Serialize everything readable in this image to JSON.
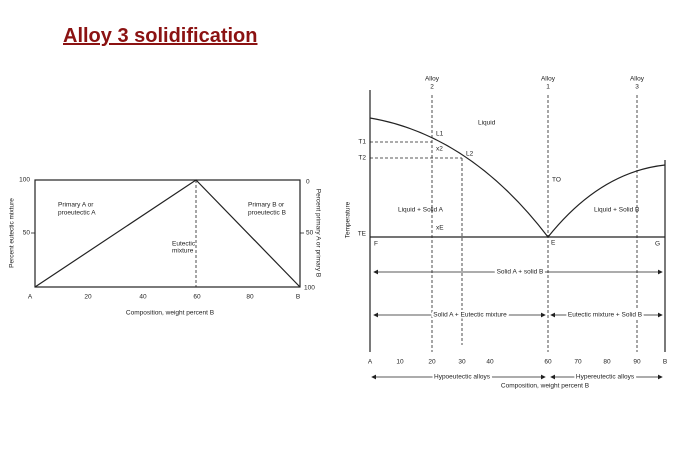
{
  "title": "Alloy 3 solidification",
  "left_diagram": {
    "y_label_left": "Percent eutectic mixture",
    "y_label_right": "Percent primary A or primary B",
    "y_ticks_left": [
      "100",
      "50"
    ],
    "y_ticks_right": [
      "0",
      "50",
      "100"
    ],
    "x_ticks": [
      "A",
      "20",
      "40",
      "60",
      "80",
      "B"
    ],
    "x_label": "Composition, weight percent B",
    "primary_a": [
      "Primary A or",
      "proeutectic A"
    ],
    "primary_b": [
      "Primary B or",
      "proeutectic B"
    ],
    "eutectic": [
      "Eutectic",
      "mixture"
    ]
  },
  "right_diagram": {
    "alloys": [
      [
        "Alloy",
        "2"
      ],
      [
        "Alloy",
        "1"
      ],
      [
        "Alloy",
        "3"
      ]
    ],
    "y_label": "Temperature",
    "temps": [
      "T1",
      "T2",
      "TE"
    ],
    "liquid": "Liquid",
    "points": [
      "L1",
      "x2",
      "L2",
      "TO",
      "xE",
      "F",
      "E",
      "G"
    ],
    "liquid_solid_a": "Liquid + Solid A",
    "liquid_solid_b": "Liquid + Solid B",
    "solid_a_solid_b": "Solid A + solid B",
    "solid_a_eutectic": "Solid A + Eutectic mixture",
    "eutectic_solid_b": "Eutectic mixture + Solid B",
    "x_ticks": [
      "A",
      "10",
      "20",
      "30",
      "40",
      "60",
      "70",
      "80",
      "90",
      "B"
    ],
    "hypoeutectic": "Hypoeutectic alloys",
    "hypereutectic": "Hypereutectic alloys",
    "x_label": "Composition, weight percent B"
  }
}
